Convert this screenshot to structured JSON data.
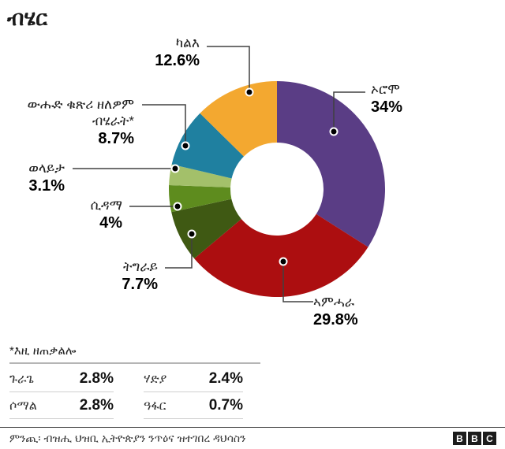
{
  "page": {
    "title": "ብሄር",
    "source": "ምንጪ፡ ብዝሒ ህዝቢ ኢትዮጵያን ንጥዕና ዝተገበረ ዳህሳስን",
    "logo_letters": [
      "B",
      "B",
      "C"
    ]
  },
  "chart_data": {
    "type": "pie",
    "subtype": "donut",
    "title": "ብሄር",
    "unit": "%",
    "start_angle_deg": 0,
    "direction": "clockwise",
    "legend_position": "callout-labels",
    "segments": [
      {
        "label": "ኦሮሞ",
        "value": 34,
        "value_label": "34%",
        "color": "#5a3d85"
      },
      {
        "label": "ኣምሓራ",
        "value": 29.8,
        "value_label": "29.8%",
        "color": "#ac0e10"
      },
      {
        "label": "ትግራይ",
        "value": 7.7,
        "value_label": "7.7%",
        "color": "#3f5913"
      },
      {
        "label": "ሲዳማ",
        "value": 4,
        "value_label": "4%",
        "color": "#5e8c1e"
      },
      {
        "label": "ወላይታ",
        "value": 3.1,
        "value_label": "3.1%",
        "color": "#a3c06a"
      },
      {
        "label": "ውሑድ ቁጽሪ ዘለዎም\nብሄራት*",
        "value": 8.7,
        "value_label": "8.7%",
        "color": "#1f80a0"
      },
      {
        "label": "ካልእ",
        "value": 12.6,
        "value_label": "12.6%",
        "color": "#f3a830"
      }
    ]
  },
  "footnote": {
    "title": "*እዚ ዘጠቃልሎ",
    "rows": [
      {
        "label": "ጉራጌ",
        "value": "2.8%"
      },
      {
        "label": "ሃድያ",
        "value": "2.4%"
      },
      {
        "label": "ሶማል",
        "value": "2.8%"
      },
      {
        "label": "ዓፋር",
        "value": "0.7%"
      }
    ]
  }
}
